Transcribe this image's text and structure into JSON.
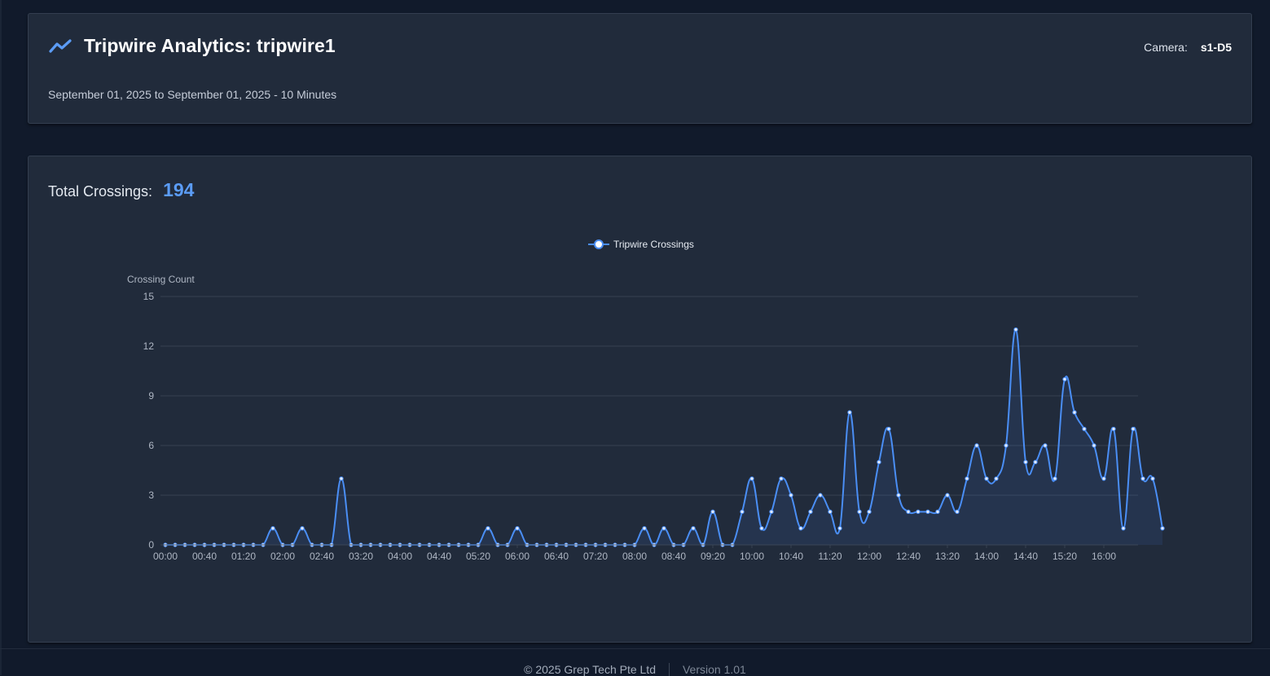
{
  "header": {
    "title": "Tripwire Analytics: tripwire1",
    "camera_label": "Camera:",
    "camera_value": "s1-D5",
    "date_range": "September 01, 2025 to September 01, 2025 - 10 Minutes",
    "icon": "trend-line-icon"
  },
  "summary": {
    "total_label": "Total Crossings:",
    "total_value": "194"
  },
  "footer": {
    "copyright": "© 2025 Grep Tech Pte Ltd",
    "version": "Version 1.01"
  },
  "colors": {
    "accent": "#5b9cf6",
    "line": "#4a8ef5",
    "background": "#111a2b",
    "card": "#212b3b"
  },
  "chart_data": {
    "type": "line",
    "ylabel": "Crossing Count",
    "xlabel": "",
    "ylim": [
      0,
      15
    ],
    "yticks": [
      0,
      3,
      6,
      9,
      12,
      15
    ],
    "grid": true,
    "legend_position": "top-center",
    "x_interval_minutes": 10,
    "x_start": "00:00",
    "x_tick_labels": [
      "00:00",
      "00:40",
      "01:20",
      "02:00",
      "02:40",
      "03:20",
      "04:00",
      "04:40",
      "05:20",
      "06:00",
      "06:40",
      "07:20",
      "08:00",
      "08:40",
      "09:20",
      "10:00",
      "10:40",
      "11:20",
      "12:00",
      "12:40",
      "13:20",
      "14:00",
      "14:40",
      "15:20",
      "16:00"
    ],
    "series": [
      {
        "name": "Tripwire Crossings",
        "values": [
          0,
          0,
          0,
          0,
          0,
          0,
          0,
          0,
          0,
          0,
          0,
          1,
          0,
          0,
          1,
          0,
          0,
          0,
          4,
          0,
          0,
          0,
          0,
          0,
          0,
          0,
          0,
          0,
          0,
          0,
          0,
          0,
          0,
          1,
          0,
          0,
          1,
          0,
          0,
          0,
          0,
          0,
          0,
          0,
          0,
          0,
          0,
          0,
          0,
          1,
          0,
          1,
          0,
          0,
          1,
          0,
          2,
          0,
          0,
          2,
          4,
          1,
          2,
          4,
          3,
          1,
          2,
          3,
          2,
          1,
          8,
          2,
          2,
          5,
          7,
          3,
          2,
          2,
          2,
          2,
          3,
          2,
          4,
          6,
          4,
          4,
          6,
          13,
          5,
          5,
          6,
          4,
          10,
          8,
          7,
          6,
          4,
          7,
          1,
          7,
          4,
          4,
          1
        ]
      }
    ]
  }
}
